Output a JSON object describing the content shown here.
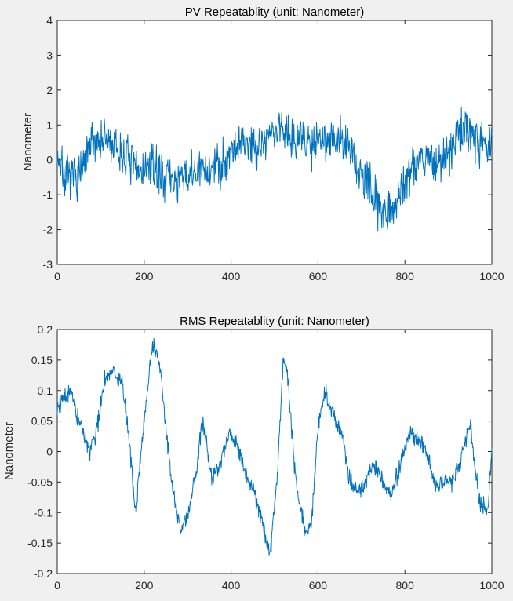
{
  "figure": {
    "background": "#f0f0f0",
    "line_color": "#0072BD"
  },
  "chart_data": [
    {
      "type": "line",
      "title": "PV Repeatablity (unit: Nanometer)",
      "xlabel": "",
      "ylabel": "Nanometer",
      "xlim": [
        0,
        1000
      ],
      "ylim": [
        -3,
        4
      ],
      "xticks": [
        0,
        200,
        400,
        600,
        800,
        1000
      ],
      "xtick_labels": [
        "0",
        "200",
        "400",
        "600",
        "800",
        "1000"
      ],
      "yticks": [
        -3,
        -2,
        -1,
        0,
        1,
        2,
        3,
        4
      ],
      "ytick_labels": [
        "-3",
        "-2",
        "-1",
        "0",
        "1",
        "2",
        "3",
        "4"
      ],
      "grid": false,
      "series": [
        {
          "name": "PV",
          "color": "#0072BD",
          "noise": 0.55,
          "seed": 7,
          "n": 1000,
          "x": [
            0,
            20,
            40,
            60,
            80,
            100,
            120,
            140,
            160,
            180,
            200,
            220,
            240,
            260,
            280,
            300,
            320,
            340,
            360,
            380,
            400,
            420,
            440,
            460,
            480,
            500,
            520,
            540,
            560,
            580,
            600,
            620,
            640,
            660,
            680,
            700,
            720,
            740,
            760,
            780,
            800,
            820,
            840,
            860,
            880,
            900,
            920,
            940,
            960,
            980,
            1000
          ],
          "y": [
            0.2,
            -0.6,
            -0.5,
            -0.3,
            0.5,
            0.6,
            0.5,
            0.2,
            0.1,
            -0.3,
            -0.3,
            -0.2,
            -0.4,
            -0.5,
            -0.6,
            -0.5,
            -0.4,
            -0.3,
            -0.2,
            -0.1,
            0.3,
            0.5,
            0.5,
            0.4,
            0.6,
            0.8,
            0.9,
            0.7,
            0.6,
            0.5,
            0.6,
            0.7,
            0.6,
            0.5,
            0.1,
            -0.5,
            -0.9,
            -1.2,
            -1.5,
            -1.2,
            -0.6,
            -0.1,
            0.1,
            0.0,
            -0.1,
            0.1,
            0.7,
            0.9,
            0.8,
            0.5,
            0.3
          ]
        }
      ]
    },
    {
      "type": "line",
      "title": "RMS Repeatablity (unit: Nanometer)",
      "xlabel": "",
      "ylabel": "Nanometer",
      "xlim": [
        0,
        1000
      ],
      "ylim": [
        -0.2,
        0.2
      ],
      "xticks": [
        0,
        200,
        400,
        600,
        800,
        1000
      ],
      "xtick_labels": [
        "0",
        "200",
        "400",
        "600",
        "800",
        "1000"
      ],
      "yticks": [
        -0.2,
        -0.15,
        -0.1,
        -0.05,
        0,
        0.05,
        0.1,
        0.15,
        0.2
      ],
      "ytick_labels": [
        "-0.2",
        "-0.15",
        "-0.1",
        "-0.05",
        "0",
        "0.05",
        "0.1",
        "0.15",
        "0.2"
      ],
      "grid": false,
      "series": [
        {
          "name": "RMS",
          "color": "#0072BD",
          "noise": 0.013,
          "seed": 19,
          "n": 1000,
          "x": [
            0,
            15,
            30,
            45,
            60,
            75,
            95,
            110,
            130,
            150,
            165,
            180,
            200,
            220,
            235,
            255,
            270,
            285,
            300,
            320,
            335,
            355,
            375,
            395,
            415,
            435,
            455,
            475,
            490,
            505,
            520,
            530,
            545,
            555,
            570,
            585,
            600,
            615,
            635,
            655,
            670,
            690,
            710,
            730,
            750,
            770,
            790,
            810,
            830,
            850,
            870,
            890,
            910,
            930,
            950,
            970,
            990,
            1000
          ],
          "y": [
            0.07,
            0.09,
            0.1,
            0.06,
            0.03,
            0.0,
            0.05,
            0.12,
            0.13,
            0.11,
            0.02,
            -0.1,
            0.05,
            0.18,
            0.15,
            0.0,
            -0.08,
            -0.13,
            -0.11,
            -0.03,
            0.05,
            -0.04,
            -0.02,
            0.03,
            0.01,
            -0.04,
            -0.07,
            -0.12,
            -0.17,
            -0.05,
            0.15,
            0.13,
            -0.02,
            -0.08,
            -0.13,
            -0.12,
            0.04,
            0.1,
            0.06,
            0.03,
            -0.04,
            -0.07,
            -0.05,
            -0.02,
            -0.05,
            -0.07,
            -0.02,
            0.03,
            0.02,
            0.0,
            -0.06,
            -0.05,
            -0.05,
            -0.01,
            0.05,
            -0.08,
            -0.1,
            0.0
          ]
        }
      ]
    }
  ]
}
